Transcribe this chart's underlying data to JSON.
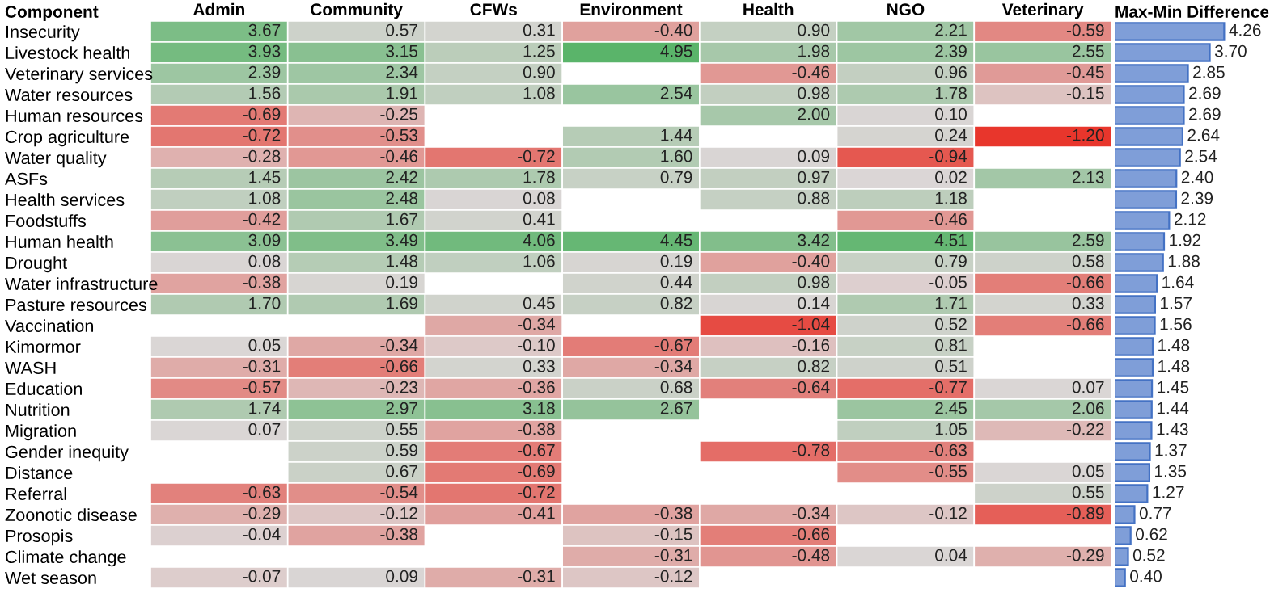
{
  "chart_data": [
    {
      "type": "heatmap",
      "ylabel": "Component",
      "data_labels": true,
      "categories": [
        "Admin",
        "Community",
        "CFWs",
        "Environment",
        "Health",
        "NGO",
        "Veterinary"
      ],
      "y_categories": [
        "Insecurity",
        "Livestock health",
        "Veterinary services",
        "Water resources",
        "Human resources",
        "Crop agriculture",
        "Water quality",
        "ASFs",
        "Health services",
        "Foodstuffs",
        "Human health",
        "Drought",
        "Water infrastructure",
        "Pasture resources",
        "Vaccination",
        "Kimormor",
        "WASH",
        "Education",
        "Nutrition",
        "Migration",
        "Gender inequity",
        "Distance",
        "Referral",
        "Zoonotic disease",
        "Prosopis",
        "Climate change",
        "Wet season"
      ],
      "cells": [
        [
          3.67,
          0.57,
          0.31,
          -0.4,
          0.9,
          2.21,
          -0.59
        ],
        [
          3.93,
          3.15,
          1.25,
          4.95,
          1.98,
          2.39,
          2.55
        ],
        [
          2.39,
          2.34,
          0.9,
          null,
          -0.46,
          0.96,
          -0.45
        ],
        [
          1.56,
          1.91,
          1.08,
          2.54,
          0.98,
          1.78,
          -0.15
        ],
        [
          -0.69,
          -0.25,
          null,
          null,
          2.0,
          0.1,
          null
        ],
        [
          -0.72,
          -0.53,
          null,
          1.44,
          null,
          0.24,
          -1.2
        ],
        [
          -0.28,
          -0.46,
          -0.72,
          1.6,
          0.09,
          -0.94,
          null
        ],
        [
          1.45,
          2.42,
          1.78,
          0.79,
          0.97,
          0.02,
          2.13
        ],
        [
          1.08,
          2.48,
          0.08,
          null,
          0.88,
          1.18,
          null
        ],
        [
          -0.42,
          1.67,
          0.41,
          null,
          null,
          -0.46,
          null
        ],
        [
          3.09,
          3.49,
          4.06,
          4.45,
          3.42,
          4.51,
          2.59
        ],
        [
          0.08,
          1.48,
          1.06,
          0.19,
          -0.4,
          0.79,
          0.58
        ],
        [
          -0.38,
          0.19,
          null,
          0.44,
          0.98,
          -0.05,
          -0.66
        ],
        [
          1.7,
          1.69,
          0.45,
          0.82,
          0.14,
          1.71,
          0.33
        ],
        [
          null,
          null,
          -0.34,
          null,
          -1.04,
          0.52,
          -0.66
        ],
        [
          0.05,
          -0.34,
          -0.1,
          -0.67,
          -0.16,
          0.81,
          null
        ],
        [
          -0.31,
          -0.66,
          0.33,
          -0.34,
          0.82,
          0.51,
          null
        ],
        [
          -0.57,
          -0.23,
          -0.36,
          0.68,
          -0.64,
          -0.77,
          0.07
        ],
        [
          1.74,
          2.97,
          3.18,
          2.67,
          null,
          2.45,
          2.06
        ],
        [
          0.07,
          0.55,
          -0.38,
          null,
          null,
          1.05,
          -0.22
        ],
        [
          null,
          0.59,
          -0.67,
          null,
          -0.78,
          -0.63,
          null
        ],
        [
          null,
          0.67,
          -0.69,
          null,
          null,
          -0.55,
          0.05
        ],
        [
          -0.63,
          -0.54,
          -0.72,
          null,
          null,
          null,
          0.55
        ],
        [
          -0.29,
          -0.12,
          -0.41,
          -0.38,
          -0.34,
          -0.12,
          -0.89
        ],
        [
          -0.04,
          -0.38,
          null,
          -0.15,
          -0.66,
          null,
          null
        ],
        [
          null,
          null,
          null,
          -0.31,
          -0.48,
          0.04,
          -0.29
        ],
        [
          -0.07,
          0.09,
          -0.31,
          -0.12,
          null,
          null,
          null
        ]
      ],
      "cell_labels": [
        [
          "3.67",
          "0.57",
          "0.31",
          "-0.40",
          "0.90",
          "2.21",
          "-0.59"
        ],
        [
          "3.93",
          "3.15",
          "1.25",
          "4.95",
          "1.98",
          "2.39",
          "2.55"
        ],
        [
          "2.39",
          "2.34",
          "0.90",
          null,
          "-0.46",
          "0.96",
          "-0.45"
        ],
        [
          "1.56",
          "1.91",
          "1.08",
          "2.54",
          "0.98",
          "1.78",
          "-0.15"
        ],
        [
          "-0.69",
          "-0.25",
          null,
          null,
          "2.00",
          "0.10",
          null
        ],
        [
          "-0.72",
          "-0.53",
          null,
          "1.44",
          null,
          "0.24",
          "-1.20"
        ],
        [
          "-0.28",
          "-0.46",
          "-0.72",
          "1.60",
          "0.09",
          "-0.94",
          null
        ],
        [
          "1.45",
          "2.42",
          "1.78",
          "0.79",
          "0.97",
          "0.02",
          "2.13"
        ],
        [
          "1.08",
          "2.48",
          "0.08",
          null,
          "0.88",
          "1.18",
          null
        ],
        [
          "-0.42",
          "1.67",
          "0.41",
          null,
          null,
          "-0.46",
          null
        ],
        [
          "3.09",
          "3.49",
          "4.06",
          "4.45",
          "3.42",
          "4.51",
          "2.59"
        ],
        [
          "0.08",
          "1.48",
          "1.06",
          "0.19",
          "-0.40",
          "0.79",
          "0.58"
        ],
        [
          "-0.38",
          "0.19",
          null,
          "0.44",
          "0.98",
          "-0.05",
          "-0.66"
        ],
        [
          "1.70",
          "1.69",
          "0.45",
          "0.82",
          "0.14",
          "1.71",
          "0.33"
        ],
        [
          null,
          null,
          "-0.34",
          null,
          "-1.04",
          "0.52",
          "-0.66"
        ],
        [
          "0.05",
          "-0.34",
          "-0.10",
          "-0.67",
          "-0.16",
          "0.81",
          null
        ],
        [
          "-0.31",
          "-0.66",
          "0.33",
          "-0.34",
          "0.82",
          "0.51",
          null
        ],
        [
          "-0.57",
          "-0.23",
          "-0.36",
          "0.68",
          "-0.64",
          "-0.77",
          "0.07"
        ],
        [
          "1.74",
          "2.97",
          "3.18",
          "2.67",
          null,
          "2.45",
          "2.06"
        ],
        [
          "0.07",
          "0.55",
          "-0.38",
          null,
          null,
          "1.05",
          "-0.22"
        ],
        [
          null,
          "0.59",
          "-0.67",
          null,
          "-0.78",
          "-0.63",
          null
        ],
        [
          null,
          "0.67",
          "-0.69",
          null,
          null,
          "-0.55",
          "0.05"
        ],
        [
          "-0.63",
          "-0.54",
          "-0.72",
          null,
          null,
          null,
          "0.55"
        ],
        [
          "-0.29",
          "-0.12",
          "-0.41",
          "-0.38",
          "-0.34",
          "-0.12",
          "-0.89"
        ],
        [
          "-0.04",
          "-0.38",
          null,
          "-0.15",
          "-0.66",
          null,
          null
        ],
        [
          null,
          null,
          null,
          "-0.31",
          "-0.48",
          "0.04",
          "-0.29"
        ],
        [
          "-0.07",
          "0.09",
          "-0.31",
          "-0.12",
          null,
          null,
          null
        ]
      ]
    },
    {
      "type": "bar",
      "orientation": "horizontal",
      "title": "Max-Min Difference",
      "color": "#7f9ed8",
      "categories": [
        null,
        null,
        null,
        null,
        null,
        null,
        null,
        null,
        null,
        null,
        null,
        null,
        null,
        null,
        null,
        null,
        null,
        null,
        null,
        null,
        null,
        null,
        null,
        null,
        null,
        null,
        null
      ],
      "values": [
        4.26,
        3.7,
        2.85,
        2.69,
        2.69,
        2.64,
        2.54,
        2.4,
        2.39,
        2.12,
        1.92,
        1.88,
        1.64,
        1.57,
        1.56,
        1.48,
        1.48,
        1.45,
        1.44,
        1.43,
        1.37,
        1.35,
        1.27,
        0.77,
        0.62,
        0.52,
        0.4
      ],
      "value_labels": [
        "4.26",
        "3.70",
        "2.85",
        "2.69",
        "2.69",
        "2.64",
        "2.54",
        "2.40",
        "2.39",
        "2.12",
        "1.92",
        "1.88",
        "1.64",
        "1.57",
        "1.56",
        "1.48",
        "1.48",
        "1.45",
        "1.44",
        "1.43",
        "1.37",
        "1.35",
        "1.27",
        "0.77",
        "0.62",
        "0.52",
        "0.40"
      ]
    }
  ]
}
